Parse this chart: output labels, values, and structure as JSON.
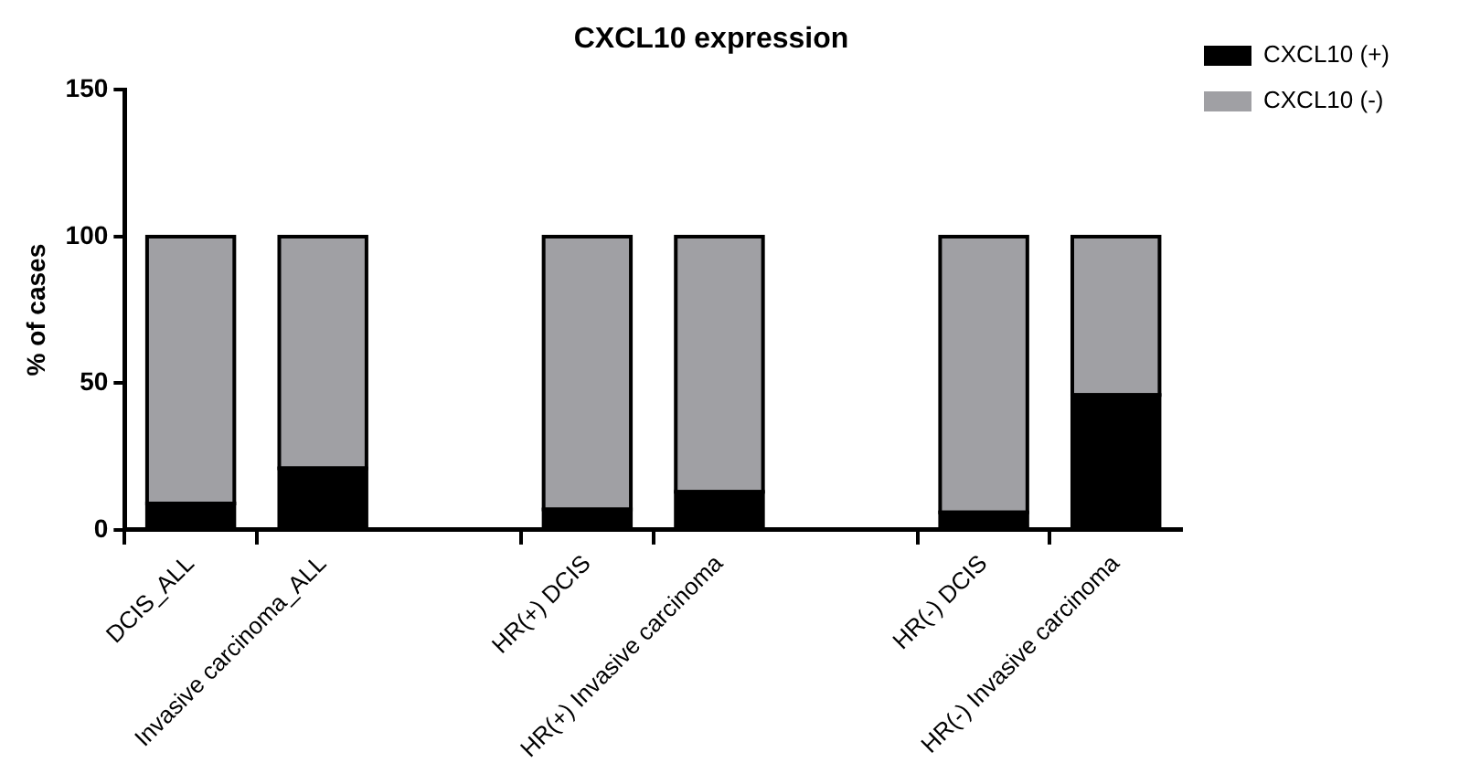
{
  "chart_data": {
    "type": "bar",
    "title": "CXCL10 expression",
    "ylabel": "% of cases",
    "categories": [
      "DCIS_ALL",
      "Invasive carcinoma_ALL",
      null,
      "HR(+) DCIS",
      "HR(+) Invasive carcinoma",
      null,
      "HR(-) DCIS",
      "HR(-) Invasive carcinoma"
    ],
    "series": [
      {
        "name": "CXCL10 (+)",
        "color": "#000000",
        "values": [
          9,
          21,
          null,
          7,
          13,
          null,
          6,
          46
        ]
      },
      {
        "name": "CXCL10 (-)",
        "color": "#a0a0a4",
        "values": [
          91,
          79,
          null,
          93,
          87,
          null,
          94,
          54
        ]
      }
    ],
    "stacked": true,
    "ylim": [
      0,
      150
    ],
    "yticks": [
      0,
      50,
      100,
      150
    ],
    "grid": false,
    "legend": "top right"
  }
}
